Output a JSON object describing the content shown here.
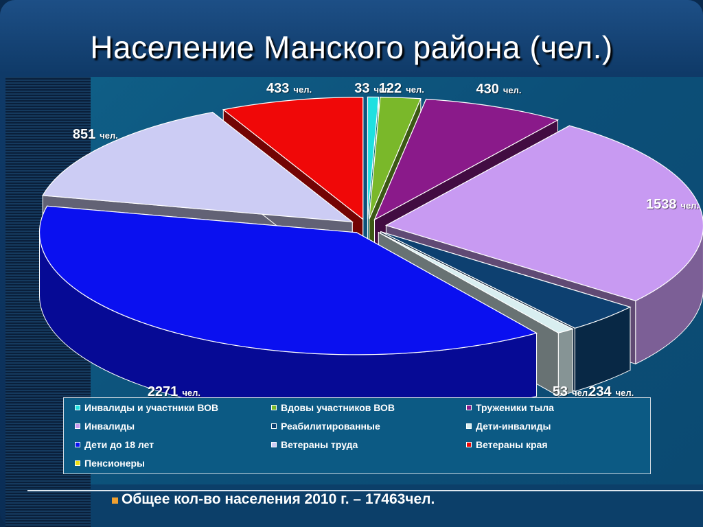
{
  "title": "Население Манского района (чел.)",
  "total_text": "Общее кол-во населения 2010 г. – 17463чел.",
  "chart_data": {
    "type": "pie",
    "title": "Население Манского района (чел.)",
    "unit": "чел.",
    "slices": [
      {
        "name": "Инвалиды и участники ВОВ",
        "value": 33,
        "label": "33",
        "color": "#1fe0e0"
      },
      {
        "name": "Вдовы участников ВОВ",
        "value": 122,
        "label": "122",
        "color": "#7ab82a"
      },
      {
        "name": "Труженики тыла",
        "value": 430,
        "label": "430",
        "color": "#8a1a8a"
      },
      {
        "name": "Инвалиды",
        "value": 1538,
        "label": "1538",
        "color": "#c89af2"
      },
      {
        "name": "Реабилитированные",
        "value": 234,
        "label": "234",
        "color": "#0d4070"
      },
      {
        "name": "Дети-инвалиды",
        "value": 53,
        "label": "53",
        "color": "#d8eef0"
      },
      {
        "name": "Пенсионеры",
        "value": 0,
        "label": "",
        "color": "#f0e010"
      },
      {
        "name": "Дети до 18 лет",
        "value": 2271,
        "label": "2271",
        "color": "#0a10f0"
      },
      {
        "name": "Ветераны труда",
        "value": 851,
        "label": "851",
        "color": "#ccccf4"
      },
      {
        "name": "Ветераны края",
        "value": 433,
        "label": "433",
        "color": "#f00808"
      }
    ],
    "legend": [
      "Инвалиды и участники ВОВ",
      "Вдовы участников ВОВ",
      "Труженики тыла",
      "Инвалиды",
      "Реабилитированные",
      "Дети-инвалиды",
      "Дети до 18 лет",
      "Ветераны труда",
      "Ветераны края",
      "Пенсионеры"
    ],
    "legend_colors": {
      "Инвалиды и участники ВОВ": "#1fe0e0",
      "Вдовы участников ВОВ": "#7ab82a",
      "Труженики тыла": "#8a1a8a",
      "Инвалиды": "#c89af2",
      "Реабилитированные": "#0d4070",
      "Дети-инвалиды": "#d8eef0",
      "Дети до 18 лет": "#0a10f0",
      "Ветераны труда": "#ccccf4",
      "Ветераны края": "#f00808",
      "Пенсионеры": "#f0e010"
    }
  }
}
